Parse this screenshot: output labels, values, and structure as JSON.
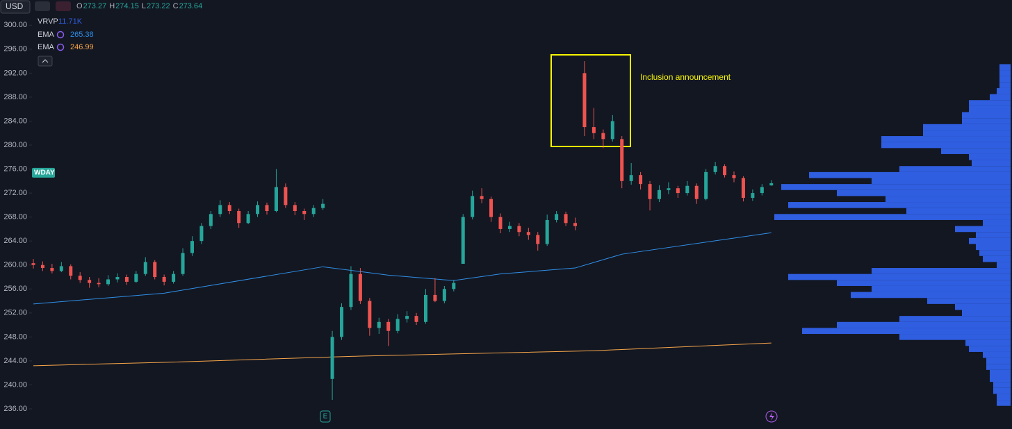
{
  "chart_data": {
    "type": "candlestick",
    "currency": "USD",
    "symbol": "WDAY",
    "ohlc_header": {
      "labels": [
        "O",
        "H",
        "L",
        "C"
      ],
      "values": [
        273.27,
        274.15,
        273.22,
        273.64
      ]
    },
    "annotation": "Inclusion announcement",
    "event_marker": "E",
    "ylim": [
      233.8,
      304.2
    ],
    "yticks": [
      {
        "value": 236,
        "label": "236.00"
      },
      {
        "value": 240,
        "label": "240.00"
      },
      {
        "value": 244,
        "label": "244.00"
      },
      {
        "value": 248,
        "label": "248.00"
      },
      {
        "value": 252,
        "label": "252.00"
      },
      {
        "value": 256,
        "label": "256.00"
      },
      {
        "value": 260,
        "label": "260.00"
      },
      {
        "value": 264,
        "label": "264.00"
      },
      {
        "value": 268,
        "label": "268.00"
      },
      {
        "value": 272,
        "label": "272.00"
      },
      {
        "value": 276,
        "label": "276.00"
      },
      {
        "value": 280,
        "label": "280.00"
      },
      {
        "value": 284,
        "label": "284.00"
      },
      {
        "value": 288,
        "label": "288.00"
      },
      {
        "value": 292,
        "label": "292.00"
      },
      {
        "value": 296,
        "label": "296.00"
      },
      {
        "value": 300,
        "label": "300.00"
      }
    ],
    "up_color": "#26a69a",
    "down_color": "#ef5350",
    "candles": [
      [
        260.3,
        261,
        259.4,
        260
      ],
      [
        260,
        260.6,
        259,
        259.5
      ],
      [
        259.5,
        260.2,
        258.6,
        259
      ],
      [
        259,
        260.5,
        258.8,
        259.8
      ],
      [
        259.8,
        260.1,
        257.6,
        258.2
      ],
      [
        258.2,
        258.8,
        257,
        257.5
      ],
      [
        257.5,
        258,
        256.2,
        257
      ],
      [
        257,
        257.8,
        256.3,
        256.8
      ],
      [
        256.8,
        258.3,
        256.5,
        257.6
      ],
      [
        257.6,
        258.6,
        257.1,
        258
      ],
      [
        258,
        258.4,
        256.7,
        257.2
      ],
      [
        257.2,
        259,
        257,
        258.5
      ],
      [
        258.5,
        261.3,
        258.2,
        260.5
      ],
      [
        260.5,
        260.8,
        257.6,
        258
      ],
      [
        258,
        258.4,
        256.6,
        257.2
      ],
      [
        257.2,
        259,
        256.9,
        258.5
      ],
      [
        258.5,
        262.8,
        258.2,
        262
      ],
      [
        262,
        264.8,
        261.5,
        264
      ],
      [
        264,
        267,
        263.5,
        266.5
      ],
      [
        266.5,
        269,
        266,
        268.5
      ],
      [
        268.5,
        270.8,
        268,
        270
      ],
      [
        270,
        270.5,
        268.5,
        269
      ],
      [
        269,
        269.4,
        266.2,
        267
      ],
      [
        267,
        269,
        266.8,
        268.5
      ],
      [
        268.5,
        270.6,
        268,
        270
      ],
      [
        270,
        270.4,
        268.4,
        269
      ],
      [
        269,
        276,
        268.8,
        273
      ],
      [
        273,
        273.6,
        269.5,
        270
      ],
      [
        270,
        270.5,
        268.3,
        269
      ],
      [
        269,
        269.4,
        267.5,
        268.5
      ],
      [
        268.5,
        270,
        268,
        269.5
      ],
      [
        269.5,
        271,
        269.2,
        270.2
      ],
      [
        241,
        249,
        237.5,
        248
      ],
      [
        248,
        253.6,
        247.5,
        253
      ],
      [
        253,
        259.8,
        252.5,
        258.5
      ],
      [
        258.5,
        259.5,
        253.5,
        254
      ],
      [
        254,
        254.5,
        248.2,
        249.5
      ],
      [
        249.5,
        251.2,
        248.5,
        250.5
      ],
      [
        250.5,
        251,
        246.5,
        249
      ],
      [
        249,
        251.8,
        248.6,
        251
      ],
      [
        251,
        252.3,
        250.4,
        251.5
      ],
      [
        251.5,
        252,
        250,
        250.5
      ],
      [
        250.5,
        256,
        250.2,
        255
      ],
      [
        255,
        257.8,
        253.8,
        254
      ],
      [
        254,
        256.5,
        253.6,
        256
      ],
      [
        256,
        257.5,
        255.6,
        257
      ],
      [
        260.2,
        268.5,
        260.2,
        268
      ],
      [
        268,
        272.4,
        267.6,
        271.5
      ],
      [
        271.5,
        272.8,
        270.3,
        271
      ],
      [
        271,
        271.4,
        267.2,
        268
      ],
      [
        268,
        268.6,
        265.3,
        266
      ],
      [
        266,
        267.2,
        265.5,
        266.5
      ],
      [
        266.5,
        267,
        264.8,
        265.5
      ],
      [
        265.5,
        266.2,
        264.2,
        265
      ],
      [
        265,
        265.5,
        262.4,
        263.5
      ],
      [
        263.5,
        268.4,
        263.2,
        267.5
      ],
      [
        267.5,
        269,
        267.1,
        268.5
      ],
      [
        268.5,
        268.9,
        266.5,
        267
      ],
      [
        267,
        267.9,
        265.8,
        266.5
      ],
      [
        292,
        294,
        281.5,
        283
      ],
      [
        283,
        286.2,
        281,
        282
      ],
      [
        282,
        282.6,
        279.5,
        281
      ],
      [
        281,
        285,
        280.6,
        284
      ],
      [
        281,
        281.5,
        272.8,
        274
      ],
      [
        274,
        277,
        273.4,
        275
      ],
      [
        275,
        275.5,
        272.6,
        273.5
      ],
      [
        273.5,
        274,
        269.1,
        271
      ],
      [
        271,
        273.3,
        270.5,
        272.5
      ],
      [
        272.5,
        273.8,
        271.8,
        272.8
      ],
      [
        272.8,
        273.2,
        271.2,
        272
      ],
      [
        272,
        274,
        271.6,
        273.2
      ],
      [
        273.2,
        273.6,
        270.2,
        271
      ],
      [
        271,
        276,
        270.8,
        275.5
      ],
      [
        275.5,
        277.2,
        275.1,
        276.5
      ],
      [
        276.5,
        276.8,
        274.6,
        275
      ],
      [
        275,
        275.6,
        273.8,
        274.5
      ],
      [
        274.5,
        274.8,
        270.6,
        271.2
      ],
      [
        271.2,
        272.6,
        270.7,
        272
      ],
      [
        272,
        273.5,
        271.6,
        273
      ],
      [
        273.27,
        274.15,
        273.22,
        273.64
      ]
    ],
    "indicators": [
      {
        "name": "EMA",
        "last_value": 265.38,
        "color": "#2f8fe8",
        "x": [
          0,
          14,
          31,
          38,
          45,
          50,
          58,
          63,
          79
        ],
        "values": [
          253.5,
          255.3,
          259.7,
          258.3,
          257.4,
          258.5,
          259.5,
          261.8,
          265.38
        ]
      },
      {
        "name": "EMA",
        "last_value": 246.99,
        "color": "#f7a64a",
        "x": [
          0,
          15,
          35,
          60,
          79
        ],
        "values": [
          243.2,
          243.8,
          244.8,
          245.7,
          246.99
        ]
      }
    ],
    "volume_profile": {
      "name": "VRVP",
      "total": "11.71K",
      "color": "#2f5ee0",
      "prices": [
        237,
        238,
        239,
        240,
        241,
        242,
        243,
        244,
        245,
        246,
        247,
        248,
        249,
        250,
        251,
        252,
        253,
        254,
        255,
        256,
        257,
        258,
        259,
        260,
        261,
        262,
        263,
        264,
        265,
        266,
        267,
        268,
        269,
        270,
        271,
        272,
        273,
        274,
        275,
        276,
        277,
        278,
        279,
        280,
        281,
        282,
        283,
        284,
        285,
        286,
        287,
        288,
        289,
        290,
        291,
        292,
        293
      ],
      "values": [
        20,
        20,
        25,
        25,
        30,
        30,
        35,
        35,
        40,
        60,
        65,
        160,
        300,
        250,
        160,
        70,
        80,
        120,
        230,
        200,
        250,
        320,
        200,
        20,
        40,
        45,
        50,
        60,
        50,
        80,
        40,
        340,
        150,
        320,
        180,
        250,
        330,
        200,
        290,
        160,
        56,
        60,
        100,
        186,
        186,
        126,
        126,
        70,
        70,
        60,
        60,
        30,
        20,
        16,
        16,
        16,
        16
      ]
    }
  }
}
